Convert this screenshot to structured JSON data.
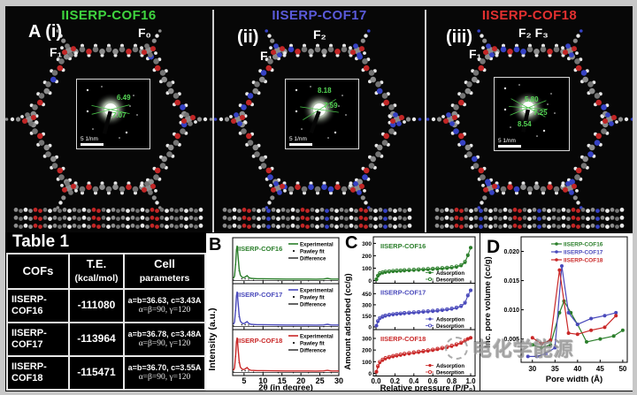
{
  "top_panels": [
    {
      "label": "A (i)",
      "title": "IISERP-COF16",
      "title_color": "#3fd43f",
      "f_top": "F₀",
      "f_left": "F₁",
      "inset": {
        "values": [
          "6.49",
          "7.07"
        ],
        "scalebar": "5 1/nm"
      }
    },
    {
      "label": "(ii)",
      "title": "IISERP-COF17",
      "title_color": "#5a5ada",
      "f_top": "F₂",
      "f_left": "F₁",
      "inset": {
        "values": [
          "8.18",
          "7.59"
        ],
        "scalebar": "5 1/nm"
      }
    },
    {
      "label": "(iii)",
      "title": "IISERP-COF18",
      "title_color": "#e23030",
      "f_top": "F₂ F₃",
      "f_left": "F₁",
      "inset": {
        "values": [
          "5.80",
          "7.25",
          "8.54"
        ],
        "scalebar": "5 1/nm"
      }
    }
  ],
  "table": {
    "title": "Table 1",
    "headers": [
      {
        "l1": "COFs",
        "l2": ""
      },
      {
        "l1": "T.E.",
        "l2": "(kcal/mol)"
      },
      {
        "l1": "Cell",
        "l2": "parameters"
      }
    ],
    "rows": [
      {
        "cof_l1": "IISERP-",
        "cof_l2": "COF16",
        "te": "-111080",
        "cell1": "a=b=36.63, c=3.43A",
        "cell2": "α=β=90, γ=120"
      },
      {
        "cof_l1": "IISERP-",
        "cof_l2": "COF17",
        "te": "-113964",
        "cell1": "a=b=36.78, c=3.48A",
        "cell2": "α=β=90, γ=120"
      },
      {
        "cof_l1": "IISERP-",
        "cof_l2": "COF18",
        "te": "-115471",
        "cell1": "a=b=36.70, c=3.55A",
        "cell2": "α=β=90, γ=120"
      }
    ]
  },
  "chart_data": [
    {
      "id": "B",
      "type": "line",
      "xlabel": "2θ (in degree)",
      "ylabel": "Intensity (a.u.)",
      "xlim": [
        2,
        30
      ],
      "xticks": [
        5,
        10,
        15,
        20,
        25,
        30
      ],
      "legend": [
        "Experimental",
        "Pawley fit",
        "Difference"
      ],
      "profile_x": [
        2.2,
        2.5,
        2.8,
        3.0,
        3.2,
        3.4,
        3.7,
        4.0,
        4.4,
        4.8,
        5.3,
        5.8,
        6.2,
        6.8,
        7.5,
        8.5,
        10,
        12,
        14,
        16,
        18,
        20,
        22,
        24,
        26,
        27,
        28,
        30
      ],
      "profile_y": [
        0.05,
        0.12,
        0.5,
        0.88,
        1.0,
        0.72,
        0.32,
        0.15,
        0.09,
        0.07,
        0.09,
        0.13,
        0.08,
        0.05,
        0.045,
        0.04,
        0.04,
        0.036,
        0.034,
        0.032,
        0.031,
        0.03,
        0.03,
        0.029,
        0.034,
        0.05,
        0.032,
        0.03
      ],
      "subplots": [
        {
          "name": "IISERP-COF16",
          "color": "#2a7e2a"
        },
        {
          "name": "IISERP-COF17",
          "color": "#4949bb"
        },
        {
          "name": "IISERP-COF18",
          "color": "#c92727"
        }
      ]
    },
    {
      "id": "C",
      "type": "scatter",
      "xlabel": "Relative pressure (P/P₀)",
      "ylabel": "Amount adsorbed (cc/g)",
      "xlim": [
        0,
        1
      ],
      "xticks": [
        0,
        0.2,
        0.4,
        0.6,
        0.8,
        1.0
      ],
      "x": [
        0.005,
        0.02,
        0.04,
        0.07,
        0.1,
        0.14,
        0.18,
        0.22,
        0.26,
        0.3,
        0.35,
        0.4,
        0.45,
        0.5,
        0.55,
        0.6,
        0.65,
        0.7,
        0.75,
        0.8,
        0.85,
        0.9,
        0.94,
        0.97,
        1.0
      ],
      "subplots": [
        {
          "name": "IISERP-COF16",
          "color": "#2a7e2a",
          "ylim": 310,
          "yticks": [
            0,
            100,
            200,
            300
          ],
          "legend": [
            "Adsorption",
            "Desorption"
          ],
          "adsorption": [
            8,
            35,
            52,
            60,
            65,
            68,
            71,
            73,
            75,
            77,
            79,
            81,
            83,
            85,
            87,
            89,
            91,
            94,
            97,
            101,
            107,
            118,
            145,
            200,
            265
          ],
          "desorption": [
            10,
            40,
            60,
            68,
            73,
            76,
            79,
            81,
            83,
            85,
            87,
            89,
            91,
            93,
            95,
            97,
            99,
            102,
            105,
            109,
            115,
            126,
            152,
            205,
            265
          ]
        },
        {
          "name": "IISERP-COF17",
          "color": "#4949bb",
          "ylim": 520,
          "yticks": [
            0,
            150,
            300,
            450
          ],
          "legend": [
            "Adsorption",
            "Desorption"
          ],
          "adsorption": [
            15,
            70,
            110,
            130,
            145,
            155,
            162,
            168,
            173,
            178,
            183,
            188,
            193,
            198,
            203,
            208,
            214,
            221,
            229,
            239,
            252,
            275,
            320,
            420,
            495
          ],
          "desorption": [
            18,
            80,
            122,
            142,
            157,
            167,
            174,
            180,
            185,
            190,
            195,
            200,
            205,
            210,
            215,
            220,
            226,
            233,
            241,
            251,
            264,
            287,
            330,
            428,
            495
          ]
        },
        {
          "name": "IISERP-COF18",
          "color": "#c92727",
          "ylim": 330,
          "yticks": [
            0,
            100,
            200,
            300
          ],
          "legend": [
            "Adsorption",
            "Desorption"
          ],
          "adsorption": [
            12,
            55,
            90,
            110,
            123,
            133,
            141,
            148,
            154,
            160,
            166,
            172,
            178,
            184,
            190,
            196,
            203,
            211,
            220,
            230,
            242,
            257,
            275,
            292,
            305
          ],
          "desorption": [
            14,
            62,
            99,
            119,
            132,
            142,
            150,
            157,
            163,
            169,
            175,
            181,
            187,
            193,
            199,
            205,
            212,
            220,
            229,
            239,
            251,
            265,
            282,
            296,
            305
          ]
        }
      ]
    },
    {
      "id": "D",
      "type": "line-scatter",
      "xlabel": "Pore width (Å)",
      "ylabel": "Inc. pore volume (cc/g)",
      "xlim": [
        27.5,
        51
      ],
      "ylim": [
        0.001,
        0.0225
      ],
      "xticks": [
        30,
        35,
        40,
        45,
        50
      ],
      "yticks": [
        0.005,
        0.01,
        0.015,
        0.02
      ],
      "series": [
        {
          "name": "IISERP-COF16",
          "color": "#2a7e2a",
          "x": [
            30,
            32,
            34,
            36,
            37,
            38.5,
            40,
            42,
            45,
            48,
            50
          ],
          "y": [
            0.004,
            0.0035,
            0.004,
            0.0095,
            0.0115,
            0.0095,
            0.0075,
            0.0045,
            0.005,
            0.0055,
            0.0065
          ]
        },
        {
          "name": "IISERP-COF17",
          "color": "#4949bb",
          "x": [
            29,
            31,
            33,
            35,
            36.5,
            38,
            40,
            43,
            46,
            48.5
          ],
          "y": [
            0.002,
            0.002,
            0.0025,
            0.0035,
            0.0175,
            0.0095,
            0.0075,
            0.0085,
            0.009,
            0.0095
          ]
        },
        {
          "name": "IISERP-COF18",
          "color": "#c92727",
          "x": [
            30,
            32,
            34,
            36,
            38,
            40,
            43,
            46,
            48.5
          ],
          "y": [
            0.0052,
            0.0042,
            0.0048,
            0.0168,
            0.006,
            0.0058,
            0.0065,
            0.007,
            0.009
          ]
        }
      ]
    }
  ],
  "watermark": {
    "text": "电化学能源"
  }
}
